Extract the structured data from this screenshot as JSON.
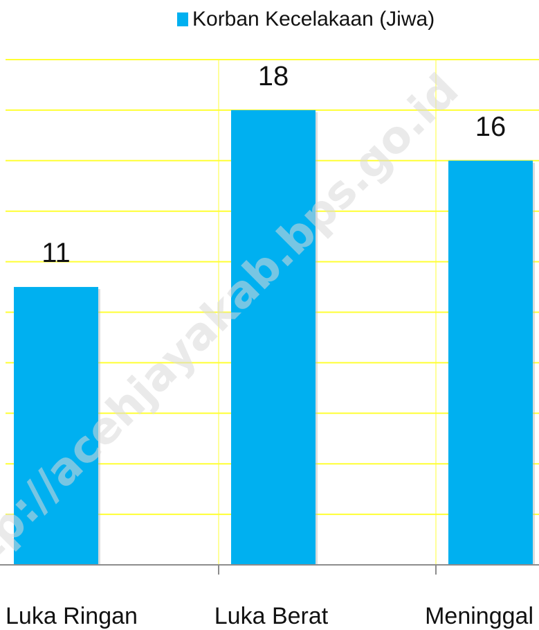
{
  "chart_data": {
    "type": "bar",
    "categories": [
      "Luka Ringan",
      "Luka Berat",
      "Meninggal"
    ],
    "series": [
      {
        "name": "Korban Kecelakaan (Jiwa)",
        "values": [
          11,
          18,
          16
        ],
        "color": "#00B0F0"
      }
    ],
    "data_labels": [
      "11",
      "18",
      "16"
    ],
    "title": "",
    "xlabel": "",
    "ylabel": "",
    "ylim": [
      0,
      20
    ],
    "y_tick_labels_shown": false,
    "grid": true,
    "grid_color": "#FFFF33",
    "legend_position": "top-center",
    "axis_color": "#8c8c8c"
  },
  "watermark": {
    "text": "http://acehjayakab.bps.go.id"
  }
}
